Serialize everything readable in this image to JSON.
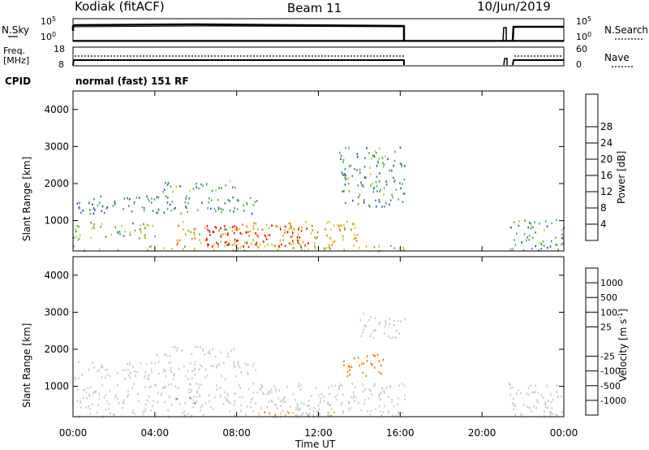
{
  "header": {
    "station": "Kodiak (fitACF)",
    "beam": "Beam 11",
    "date": "10/Jun/2019",
    "cpid_label": "CPID",
    "cpid_value": "normal (fast) 151 RF"
  },
  "noise_panel": {
    "left_label": "N.Sky",
    "right_label": "N.Search",
    "left_ticks": [
      "10^5",
      "10^0"
    ],
    "right_ticks": [
      "10^5",
      "10^0"
    ]
  },
  "freq_panel": {
    "left_label_line1": "Freq.",
    "left_label_line2": "[MHz]",
    "left_ticks": [
      "18",
      "8"
    ],
    "right_label": "Nave",
    "right_ticks": [
      "60",
      "0"
    ]
  },
  "colors": {
    "power_scale": [
      "#0a1ee6",
      "#2d4fb2",
      "#3f8a6a",
      "#4db24d",
      "#b8d21e",
      "#f0a800",
      "#f06a00",
      "#e61e00",
      "#f00000"
    ],
    "velocity_scale": [
      "#e60000",
      "#f03c00",
      "#f07800",
      "#f0b432",
      "#c8c8c8",
      "#c8c8c8",
      "#78c83c",
      "#3ca03c",
      "#2e6ab4",
      "#1e2ad2"
    ]
  },
  "chart_data": [
    {
      "type": "heatmap",
      "name": "power",
      "xlabel": "Time UT",
      "ylabel": "Slant Range [km]",
      "x_ticks": [
        "00:00",
        "04:00",
        "08:00",
        "12:00",
        "16:00",
        "20:00",
        "00:00"
      ],
      "y_ticks": [
        1000,
        2000,
        3000,
        4000
      ],
      "ylim": [
        180,
        4500
      ],
      "xlim_hours": [
        0,
        24
      ],
      "colorbar_label": "Power [dB]",
      "colorbar_ticks": [
        4,
        8,
        12,
        16,
        20,
        24,
        28
      ],
      "colorbar_range": [
        0,
        32
      ],
      "data_gaps_hours": [
        [
          16.2,
          21.3
        ]
      ],
      "echo_regions": [
        {
          "t": [
            0,
            16.2
          ],
          "r": [
            200,
            350
          ],
          "level": 16
        },
        {
          "t": [
            0,
            4.0
          ],
          "r": [
            500,
            1000
          ],
          "level": 13
        },
        {
          "t": [
            5.0,
            14.0
          ],
          "r": [
            350,
            1000
          ],
          "level": 19
        },
        {
          "t": [
            6.5,
            11.5
          ],
          "r": [
            300,
            900
          ],
          "level": 29
        },
        {
          "t": [
            0,
            9.0
          ],
          "r": [
            1200,
            1700
          ],
          "level": 9
        },
        {
          "t": [
            4.0,
            8.0
          ],
          "r": [
            1800,
            2100
          ],
          "level": 11
        },
        {
          "t": [
            13.0,
            16.2
          ],
          "r": [
            1400,
            3000
          ],
          "level": 10
        },
        {
          "t": [
            21.3,
            24
          ],
          "r": [
            200,
            1100
          ],
          "level": 10
        }
      ]
    },
    {
      "type": "heatmap",
      "name": "velocity",
      "xlabel": "Time UT",
      "ylabel": "Slant Range [km]",
      "x_ticks": [
        "00:00",
        "04:00",
        "08:00",
        "12:00",
        "16:00",
        "20:00",
        "00:00"
      ],
      "y_ticks": [
        1000,
        2000,
        3000,
        4000
      ],
      "ylim": [
        180,
        4500
      ],
      "xlim_hours": [
        0,
        24
      ],
      "colorbar_label": "Velocity [m s^-1]",
      "colorbar_ticks": [
        -1000,
        -500,
        -100,
        -25,
        25,
        100,
        500,
        1000
      ],
      "colorbar_tick_labels": [
        "-1000",
        "-500",
        "-100",
        "-25",
        "25",
        "100",
        "500",
        "1000"
      ],
      "data_gaps_hours": [
        [
          16.2,
          21.3
        ]
      ],
      "echo_regions": [
        {
          "t": [
            0,
            16.2
          ],
          "r": [
            200,
            1100
          ],
          "v": 0
        },
        {
          "t": [
            0,
            9.0
          ],
          "r": [
            1200,
            1700
          ],
          "v": 0
        },
        {
          "t": [
            4.0,
            8.0
          ],
          "r": [
            1800,
            2100
          ],
          "v": 0
        },
        {
          "t": [
            5.0,
            6.0
          ],
          "r": [
            550,
            750
          ],
          "v": 200
        },
        {
          "t": [
            13.2,
            15.2
          ],
          "r": [
            1300,
            1900
          ],
          "v": -300
        },
        {
          "t": [
            14.0,
            16.2
          ],
          "r": [
            2300,
            3000
          ],
          "v": 0
        },
        {
          "t": [
            9.0,
            13.0
          ],
          "r": [
            200,
            350
          ],
          "v": -60
        },
        {
          "t": [
            21.3,
            24
          ],
          "r": [
            200,
            1100
          ],
          "v": 0
        }
      ]
    }
  ]
}
